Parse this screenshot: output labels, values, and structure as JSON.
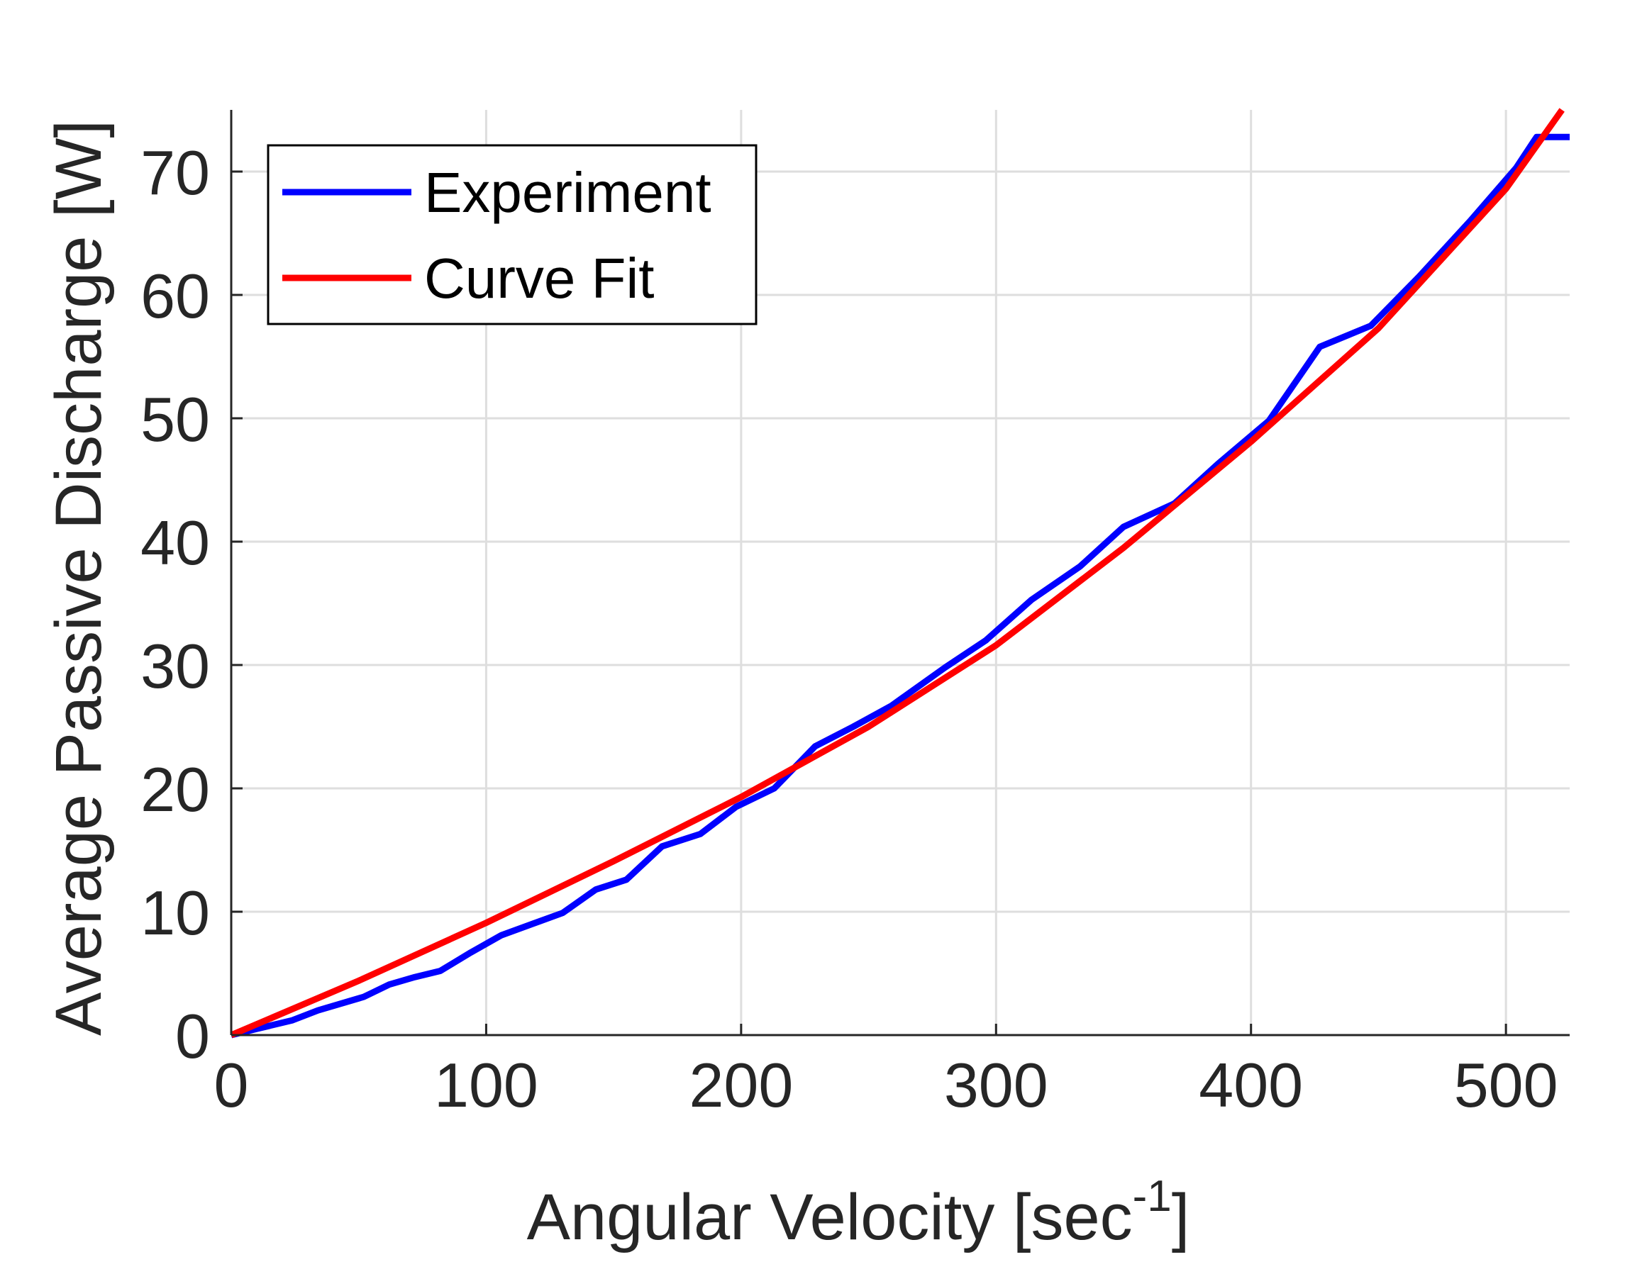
{
  "chart_data": {
    "type": "line",
    "title": "",
    "xlabel": "Angular Velocity [sec",
    "xlabel_superscript": "-1",
    "xlabel_suffix": "]",
    "ylabel": "Average Passive Discharge [W]",
    "xlim": [
      0,
      525
    ],
    "ylim": [
      0,
      75
    ],
    "grid": true,
    "legend_position": "top-left",
    "x_ticks": [
      0,
      100,
      200,
      300,
      400,
      500
    ],
    "x_tick_labels": [
      "0",
      "100",
      "200",
      "300",
      "400",
      "500"
    ],
    "y_ticks": [
      0,
      10,
      20,
      30,
      40,
      50,
      60,
      70
    ],
    "y_tick_labels": [
      "0",
      "10",
      "20",
      "30",
      "40",
      "50",
      "60",
      "70"
    ],
    "series": [
      {
        "name": "Experiment",
        "color": "#0000ff",
        "x": [
          0,
          10,
          24,
          34,
          52,
          62,
          72,
          82,
          94,
          106,
          118,
          130,
          143,
          155,
          169,
          184,
          198,
          213,
          229,
          244,
          259,
          280,
          296,
          314,
          333,
          350,
          370,
          387,
          407,
          427,
          447,
          466,
          486,
          504,
          512,
          525
        ],
        "y": [
          0,
          0.5,
          1.2,
          2,
          3.1,
          4.1,
          4.7,
          5.2,
          6.7,
          8.1,
          9,
          9.9,
          11.8,
          12.6,
          15.3,
          16.3,
          18.5,
          20,
          23.4,
          25,
          26.7,
          29.8,
          32,
          35.3,
          38,
          41.2,
          43.1,
          46.3,
          49.8,
          55.8,
          57.5,
          61.5,
          66,
          70.3,
          72.8,
          72.8
        ]
      },
      {
        "name": "Curve Fit",
        "color": "#ff0000",
        "x": [
          0,
          50,
          100,
          150,
          200,
          250,
          300,
          350,
          400,
          450,
          500,
          522
        ],
        "y": [
          0,
          4.4,
          9.1,
          14.1,
          19.3,
          25,
          31.6,
          39.5,
          48.1,
          57.3,
          68.6,
          75
        ]
      }
    ]
  }
}
